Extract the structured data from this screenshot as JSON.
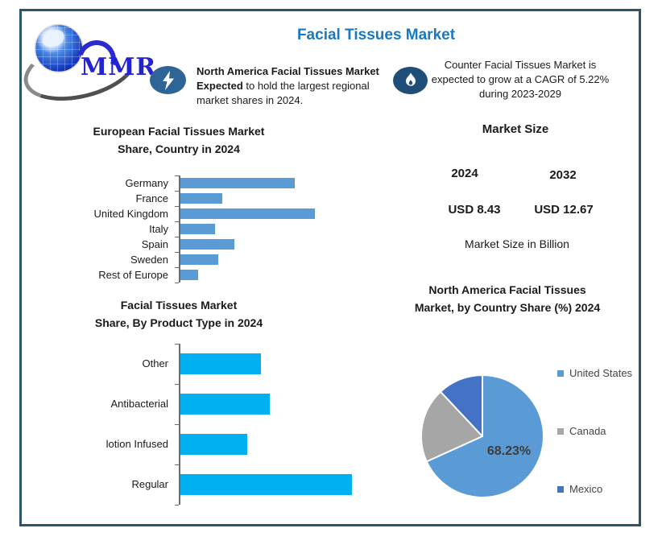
{
  "logo": {
    "text": "MMR"
  },
  "header": {
    "title": "Facial Tissues Market",
    "title_color": "#1779c4"
  },
  "callouts": {
    "left": {
      "icon": "lightning-bolt",
      "bold1": "North America Facial Tissues Market",
      "bold2": "Expected",
      "rest": " to hold the largest regional market shares in 2024."
    },
    "right": {
      "icon": "flame",
      "text": "Counter Facial Tissues Market is expected to grow at a CAGR of 5.22% during 2023-2029"
    }
  },
  "market_size": {
    "title": "Market Size",
    "year_left": "2024",
    "year_right": "2032",
    "value_left": "USD 8.43",
    "value_right": "USD 12.67",
    "footnote": "Market Size in Billion"
  },
  "colors": {
    "frame_border": "#2b5568",
    "europe_bar": "#5b9bd5",
    "product_bar": "#00b0f0",
    "pie_us": "#5b9bd5",
    "pie_canada": "#a6a6a6",
    "pie_mexico": "#4472c4",
    "title_blue": "#1779c4"
  },
  "chart_data": [
    {
      "type": "bar",
      "orientation": "horizontal",
      "title": "European Facial Tissues Market Share, Country  in 2024",
      "title_lines": [
        "European Facial Tissues Market",
        "Share, Country  in 2024"
      ],
      "categories": [
        "Germany",
        "France",
        "United Kingdom",
        "Italy",
        "Spain",
        "Sweden",
        "Rest of Europe"
      ],
      "values": [
        85,
        31,
        100,
        26,
        40,
        28,
        13
      ],
      "value_note": "axis unlabeled; values estimated relative to United Kingdom = 100",
      "bar_color": "#5b9bd5",
      "grid": false,
      "legend": false
    },
    {
      "type": "bar",
      "orientation": "horizontal",
      "title": "Facial Tissues Market Share, By Product Type in 2024",
      "title_lines": [
        "Facial Tissues Market",
        "Share, By Product Type in 2024"
      ],
      "categories": [
        "Other",
        "Antibacterial",
        "lotion Infused",
        "Regular"
      ],
      "values": [
        47,
        52,
        39,
        100
      ],
      "value_note": "axis unlabeled; values estimated relative to Regular = 100",
      "bar_color": "#00b0f0",
      "grid": false,
      "legend": false
    },
    {
      "type": "pie",
      "title": "North America Facial Tissues Market, by Country Share (%) 2024",
      "title_lines": [
        "North America Facial Tissues",
        "Market, by Country Share (%) 2024"
      ],
      "labels": [
        "United States",
        "Canada",
        "Mexico"
      ],
      "values": [
        68.23,
        19.77,
        12.0
      ],
      "value_note": "only 68.23% labeled on chart; other slices estimated from angles",
      "colors": [
        "#5b9bd5",
        "#a6a6a6",
        "#4472c4"
      ],
      "data_label": "68.23%",
      "legend_position": "right"
    }
  ]
}
